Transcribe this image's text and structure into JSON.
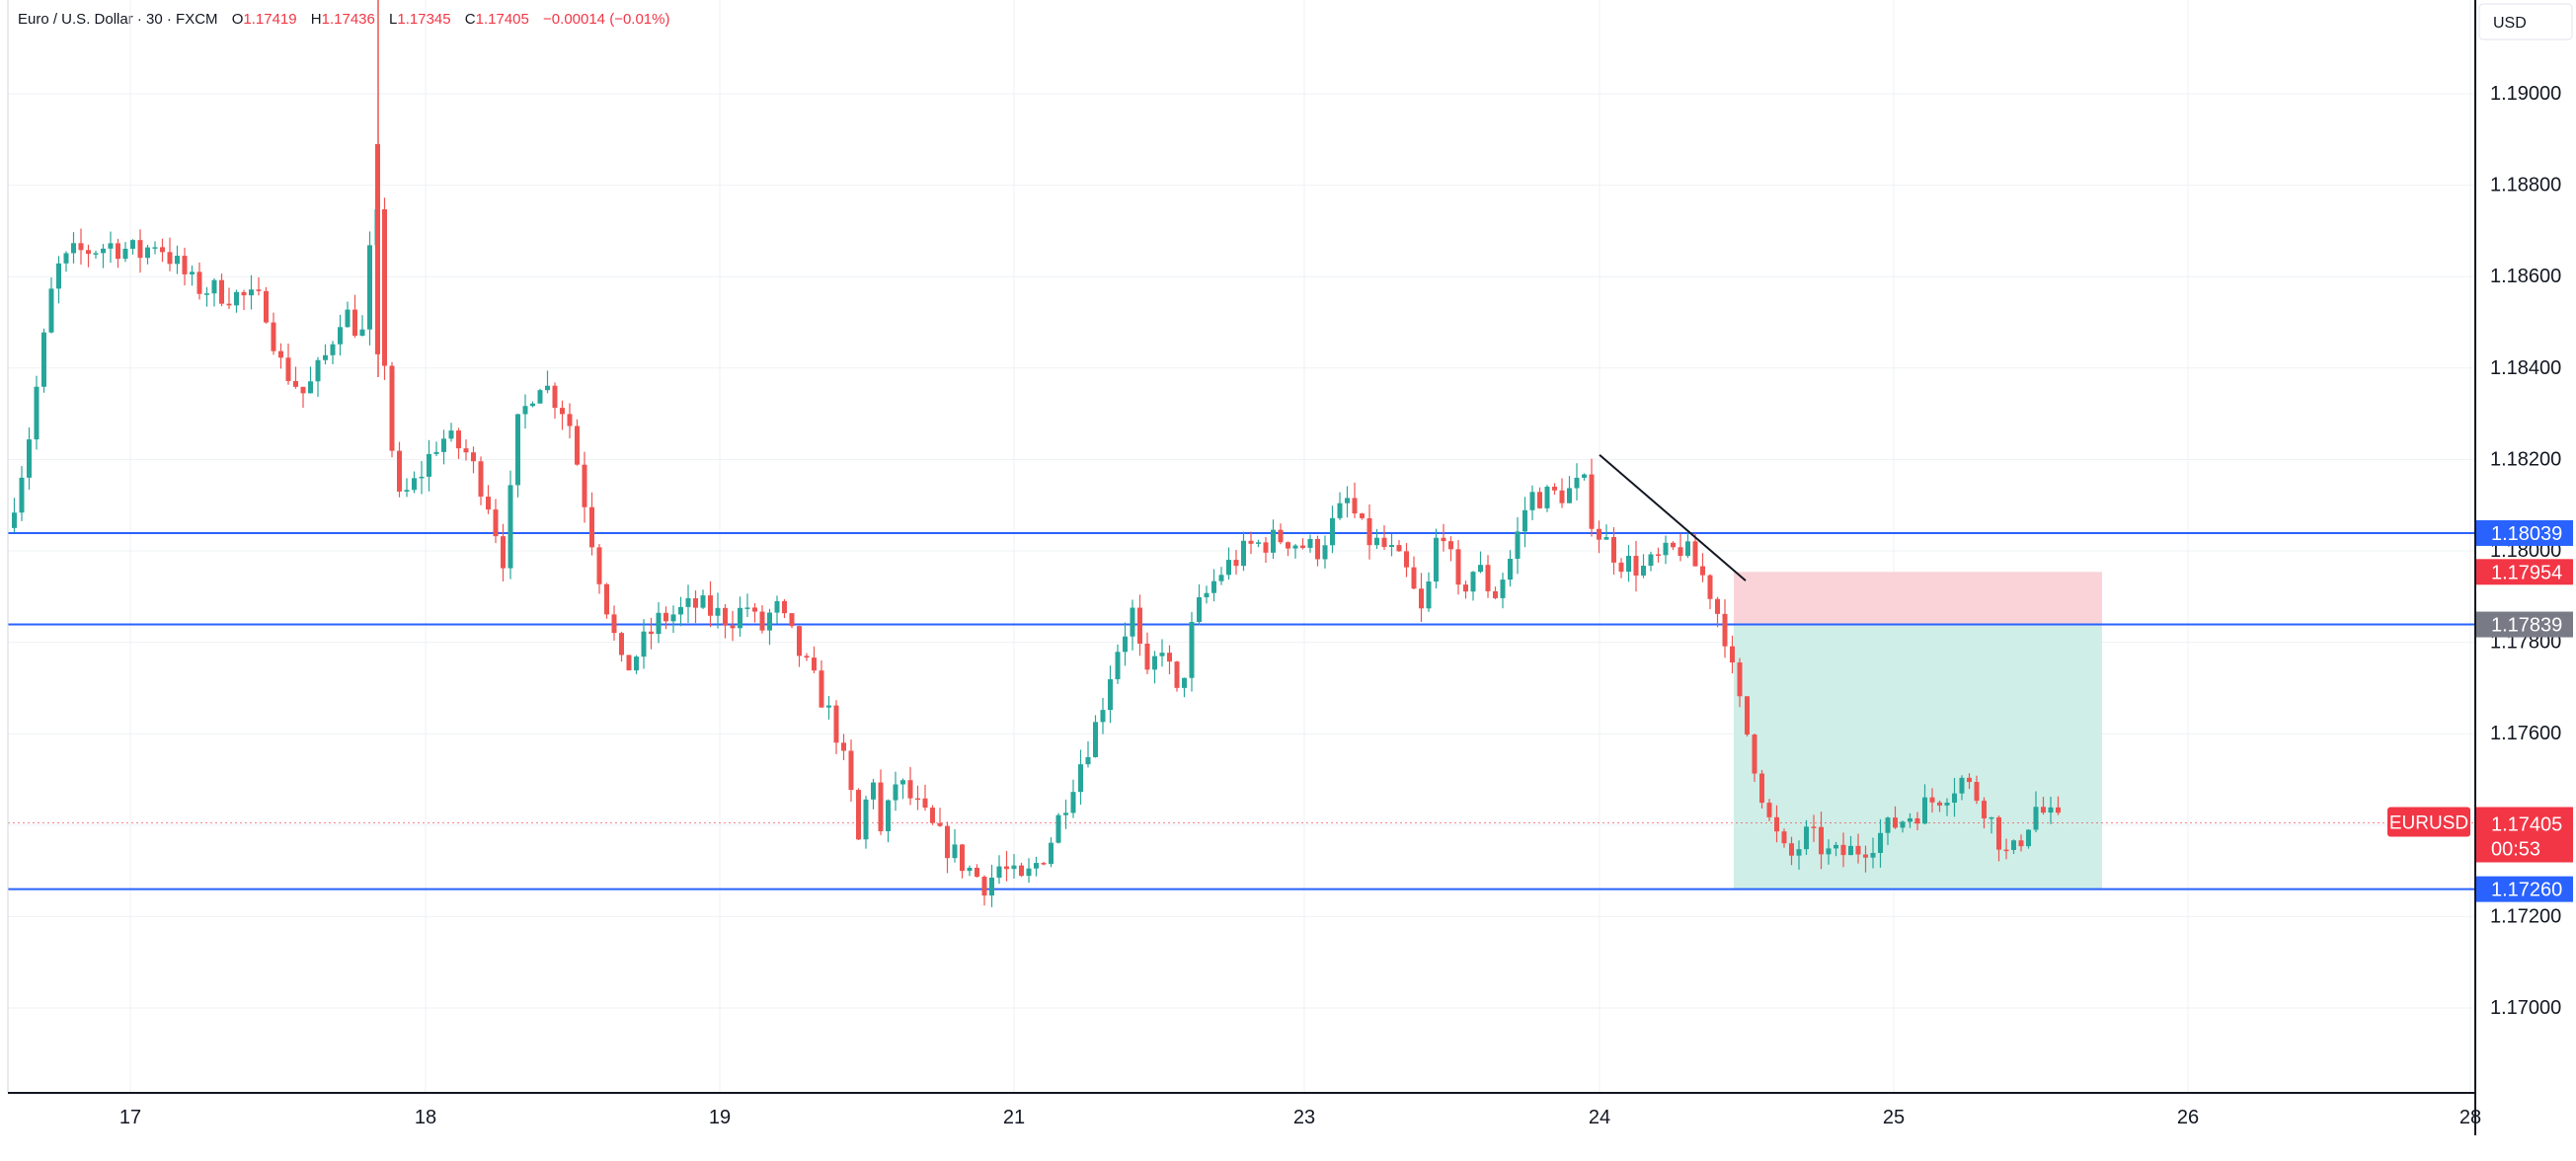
{
  "header": {
    "symbol": "Euro / U.S. Dollar · 30 · FXCM",
    "o_label": "O",
    "o_value": "1.17419",
    "h_label": "H",
    "h_value": "1.17436",
    "l_label": "L",
    "l_value": "1.17345",
    "c_label": "C",
    "c_value": "1.17405",
    "change": "−0.00014 (−0.01%)"
  },
  "currency": "USD",
  "colors": {
    "up": "#26a69a",
    "down": "#ef5350",
    "hline": "#2962ff",
    "stop_zone": "#f9d3d8",
    "target_zone": "#cfeee7",
    "grid": "#eef1f5",
    "axis": "#131722",
    "price_tag": "#f23645",
    "gray_tag": "#787b86"
  },
  "chart_data": {
    "type": "candlestick",
    "symbol": "EURUSD",
    "timeframe": "30",
    "x_tick_labels": [
      "17",
      "18",
      "19",
      "21",
      "23",
      "24",
      "25",
      "26",
      "28"
    ],
    "y_tick_labels": [
      "1.19000",
      "1.18800",
      "1.18600",
      "1.18400",
      "1.18200",
      "1.18000",
      "1.17800",
      "1.17600",
      "1.17200",
      "1.17000"
    ],
    "ylim": [
      1.1685,
      1.1924
    ],
    "grid": true,
    "horizontal_lines": [
      1.18039,
      1.17839,
      1.1726
    ],
    "price_tags": [
      {
        "label": "1.18039",
        "value": 1.18039,
        "kind": "blue"
      },
      {
        "label": "1.17954",
        "value": 1.17954,
        "kind": "red"
      },
      {
        "label": "1.17839",
        "value": 1.17839,
        "kind": "gray"
      },
      {
        "label": "1.17260",
        "value": 1.1726,
        "kind": "blue"
      }
    ],
    "current_price": {
      "symbol": "EURUSD",
      "value": "1.17405",
      "countdown": "00:53"
    },
    "trendline": {
      "from": {
        "day": 24.0,
        "price": 1.1821
      },
      "to": {
        "day": 24.5,
        "price": 1.17935
      }
    },
    "position": {
      "entry": 1.17839,
      "stop": 1.17954,
      "target": 1.1726,
      "from_day": 24.46,
      "to_day": 25.71
    },
    "price_path": [
      {
        "t": 16.58,
        "p": 1.1805
      },
      {
        "t": 16.65,
        "p": 1.1822
      },
      {
        "t": 16.75,
        "p": 1.1861
      },
      {
        "t": 16.82,
        "p": 1.1865
      },
      {
        "t": 16.95,
        "p": 1.1867
      },
      {
        "t": 17.05,
        "p": 1.1865
      },
      {
        "t": 17.1,
        "p": 1.1868
      },
      {
        "t": 17.22,
        "p": 1.1858
      },
      {
        "t": 17.35,
        "p": 1.1856
      },
      {
        "t": 17.45,
        "p": 1.1854
      },
      {
        "t": 17.5,
        "p": 1.1841
      },
      {
        "t": 17.58,
        "p": 1.1834
      },
      {
        "t": 17.65,
        "p": 1.1843
      },
      {
        "t": 17.7,
        "p": 1.1853
      },
      {
        "t": 17.78,
        "p": 1.1846
      },
      {
        "t": 17.8,
        "p": 1.1888
      },
      {
        "t": 17.85,
        "p": 1.184
      },
      {
        "t": 17.9,
        "p": 1.181
      },
      {
        "t": 17.98,
        "p": 1.1815
      },
      {
        "t": 18.08,
        "p": 1.1825
      },
      {
        "t": 18.18,
        "p": 1.1822
      },
      {
        "t": 18.27,
        "p": 1.1812
      },
      {
        "t": 18.35,
        "p": 1.1796
      },
      {
        "t": 18.38,
        "p": 1.1825
      },
      {
        "t": 18.48,
        "p": 1.1838
      },
      {
        "t": 18.6,
        "p": 1.183
      },
      {
        "t": 18.68,
        "p": 1.1797
      },
      {
        "t": 18.75,
        "p": 1.1773
      },
      {
        "t": 18.85,
        "p": 1.1785
      },
      {
        "t": 18.95,
        "p": 1.1788
      },
      {
        "t": 19.1,
        "p": 1.1785
      },
      {
        "t": 19.22,
        "p": 1.1788
      },
      {
        "t": 19.3,
        "p": 1.1782
      },
      {
        "t": 19.4,
        "p": 1.1788
      },
      {
        "t": 19.5,
        "p": 1.1782
      },
      {
        "t": 19.62,
        "p": 1.1774
      },
      {
        "t": 19.75,
        "p": 1.1767
      },
      {
        "t": 19.85,
        "p": 1.176
      },
      {
        "t": 19.95,
        "p": 1.1748
      },
      {
        "t": 20.05,
        "p": 1.1732
      },
      {
        "t": 20.12,
        "p": 1.1757
      },
      {
        "t": 20.22,
        "p": 1.1737
      },
      {
        "t": 20.35,
        "p": 1.175
      },
      {
        "t": 20.5,
        "p": 1.1745
      },
      {
        "t": 20.62,
        "p": 1.1738
      },
      {
        "t": 20.75,
        "p": 1.1732
      },
      {
        "t": 20.88,
        "p": 1.1727
      },
      {
        "t": 20.95,
        "p": 1.1731
      },
      {
        "t": 21.05,
        "p": 1.1727
      },
      {
        "t": 21.15,
        "p": 1.1735
      },
      {
        "t": 21.25,
        "p": 1.175
      },
      {
        "t": 21.38,
        "p": 1.1763
      },
      {
        "t": 21.5,
        "p": 1.1778
      },
      {
        "t": 21.62,
        "p": 1.1787
      },
      {
        "t": 21.7,
        "p": 1.177
      },
      {
        "t": 21.8,
        "p": 1.178
      },
      {
        "t": 21.9,
        "p": 1.1767
      },
      {
        "t": 22.0,
        "p": 1.1786
      },
      {
        "t": 22.15,
        "p": 1.1795
      },
      {
        "t": 22.35,
        "p": 1.1801
      },
      {
        "t": 22.55,
        "p": 1.1803
      },
      {
        "t": 22.78,
        "p": 1.18
      },
      {
        "t": 23.0,
        "p": 1.1811
      },
      {
        "t": 23.1,
        "p": 1.1803
      },
      {
        "t": 23.25,
        "p": 1.18
      },
      {
        "t": 23.35,
        "p": 1.1795
      },
      {
        "t": 23.45,
        "p": 1.1785
      },
      {
        "t": 23.55,
        "p": 1.1808
      },
      {
        "t": 23.65,
        "p": 1.179
      },
      {
        "t": 23.75,
        "p": 1.1797
      },
      {
        "t": 23.85,
        "p": 1.179
      },
      {
        "t": 23.95,
        "p": 1.1799
      },
      {
        "t": 24.05,
        "p": 1.1812
      },
      {
        "t": 24.18,
        "p": 1.1812
      },
      {
        "t": 24.3,
        "p": 1.1813
      },
      {
        "t": 24.38,
        "p": 1.1815
      },
      {
        "t": 24.45,
        "p": 1.1805
      },
      {
        "t": 24.58,
        "p": 1.1798
      },
      {
        "t": 24.7,
        "p": 1.1796
      },
      {
        "t": 24.85,
        "p": 1.1801
      },
      {
        "t": 24.95,
        "p": 1.1793
      },
      {
        "t": 25.02,
        "p": 1.1782
      },
      {
        "t": 25.08,
        "p": 1.177
      },
      {
        "t": 25.18,
        "p": 1.1756
      },
      {
        "t": 25.28,
        "p": 1.1741
      },
      {
        "t": 25.38,
        "p": 1.1732
      },
      {
        "t": 25.48,
        "p": 1.1738
      },
      {
        "t": 25.6,
        "p": 1.1733
      },
      {
        "t": 25.72,
        "p": 1.1735
      },
      {
        "t": 25.85,
        "p": 1.174
      },
      {
        "t": 26.0,
        "p": 1.1745
      },
      {
        "t": 26.12,
        "p": 1.175
      },
      {
        "t": 26.2,
        "p": 1.1745
      },
      {
        "t": 26.3,
        "p": 1.1732
      },
      {
        "t": 26.38,
        "p": 1.1744
      },
      {
        "t": 26.45,
        "p": 1.174
      }
    ]
  }
}
